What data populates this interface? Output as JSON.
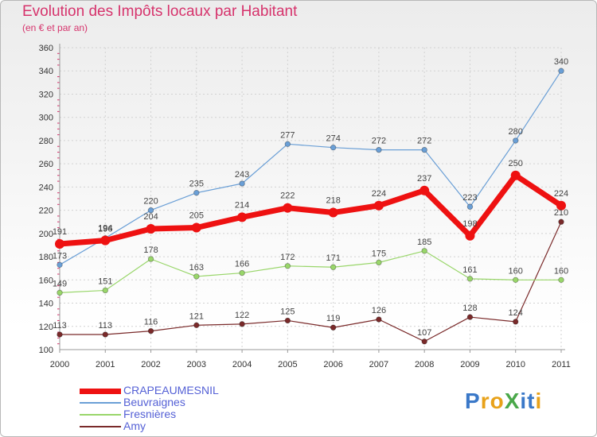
{
  "title": "Evolution des Impôts locaux par Habitant",
  "subtitle": "(en € et par an)",
  "brand": "ProXiti",
  "chart_data": {
    "type": "line",
    "title": "Evolution des Impôts locaux par Habitant",
    "subtitle": "(en € et par an)",
    "x": [
      "2000",
      "2001",
      "2002",
      "2003",
      "2004",
      "2005",
      "2006",
      "2007",
      "2008",
      "2009",
      "2010",
      "2011"
    ],
    "ylim": [
      100,
      360
    ],
    "yticks": [
      100,
      120,
      140,
      160,
      180,
      200,
      220,
      240,
      260,
      280,
      300,
      320,
      340,
      360
    ],
    "grid": true,
    "legend": "bottom-left",
    "series": [
      {
        "name": "CRAPEAUMESNIL",
        "color": "#ee1111",
        "values": [
          191,
          194,
          204,
          205,
          214,
          222,
          218,
          224,
          237,
          198,
          250,
          224
        ]
      },
      {
        "name": "Beuvraignes",
        "color": "#6a9fd6",
        "values": [
          173,
          196,
          220,
          235,
          243,
          277,
          274,
          272,
          272,
          223,
          280,
          340
        ]
      },
      {
        "name": "Fresnières",
        "color": "#99d66a",
        "values": [
          149,
          151,
          178,
          163,
          166,
          172,
          171,
          175,
          185,
          161,
          160,
          160
        ]
      },
      {
        "name": "Amy",
        "color": "#7a2a2a",
        "values": [
          113,
          113,
          116,
          121,
          122,
          125,
          119,
          126,
          107,
          128,
          124,
          210
        ]
      }
    ]
  }
}
